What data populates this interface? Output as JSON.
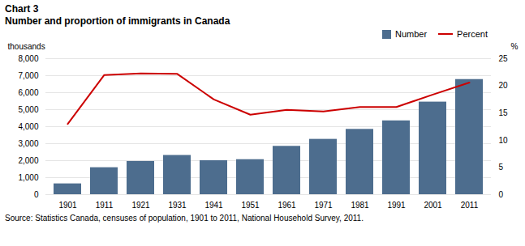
{
  "chart_data": {
    "type": "bar",
    "title": "Chart 3",
    "subtitle": "Number and proportion of immigrants in Canada",
    "source": "Source: Statistics Canada, censuses of population, 1901 to 2011, National Household Survey, 2011.",
    "ylabel": "thousands",
    "y2label": "%",
    "categories": [
      "1901",
      "1911",
      "1921",
      "1931",
      "1941",
      "1951",
      "1961",
      "1971",
      "1981",
      "1991",
      "2001",
      "2011"
    ],
    "series": [
      {
        "name": "Number",
        "type": "bar",
        "color": "#4d6d8e",
        "values": [
          636,
          1587,
          1956,
          2308,
          1998,
          2060,
          2844,
          3256,
          3843,
          4343,
          5448,
          6775
        ]
      },
      {
        "name": "Percent",
        "type": "line",
        "color": "#cc0000",
        "axis": "y2",
        "values": [
          13.0,
          22.0,
          22.3,
          22.2,
          17.5,
          14.7,
          15.6,
          15.3,
          16.1,
          16.1,
          18.4,
          20.6
        ]
      }
    ],
    "ylim": [
      0,
      8000
    ],
    "yticks": [
      0,
      {
        "value": 1000,
        "label": "1,000"
      },
      {
        "value": 2000,
        "label": "2,000"
      },
      {
        "value": 3000,
        "label": "3,000"
      },
      {
        "value": 4000,
        "label": "4,000"
      },
      {
        "value": 5000,
        "label": "5,000"
      },
      {
        "value": 6000,
        "label": "6,000"
      },
      {
        "value": 7000,
        "label": "7,000"
      },
      {
        "value": 8000,
        "label": "8,000"
      }
    ],
    "y2lim": [
      0,
      25
    ],
    "y2ticks": [
      0,
      5,
      10,
      15,
      20,
      25
    ],
    "grid": true,
    "legend": "upper right"
  }
}
